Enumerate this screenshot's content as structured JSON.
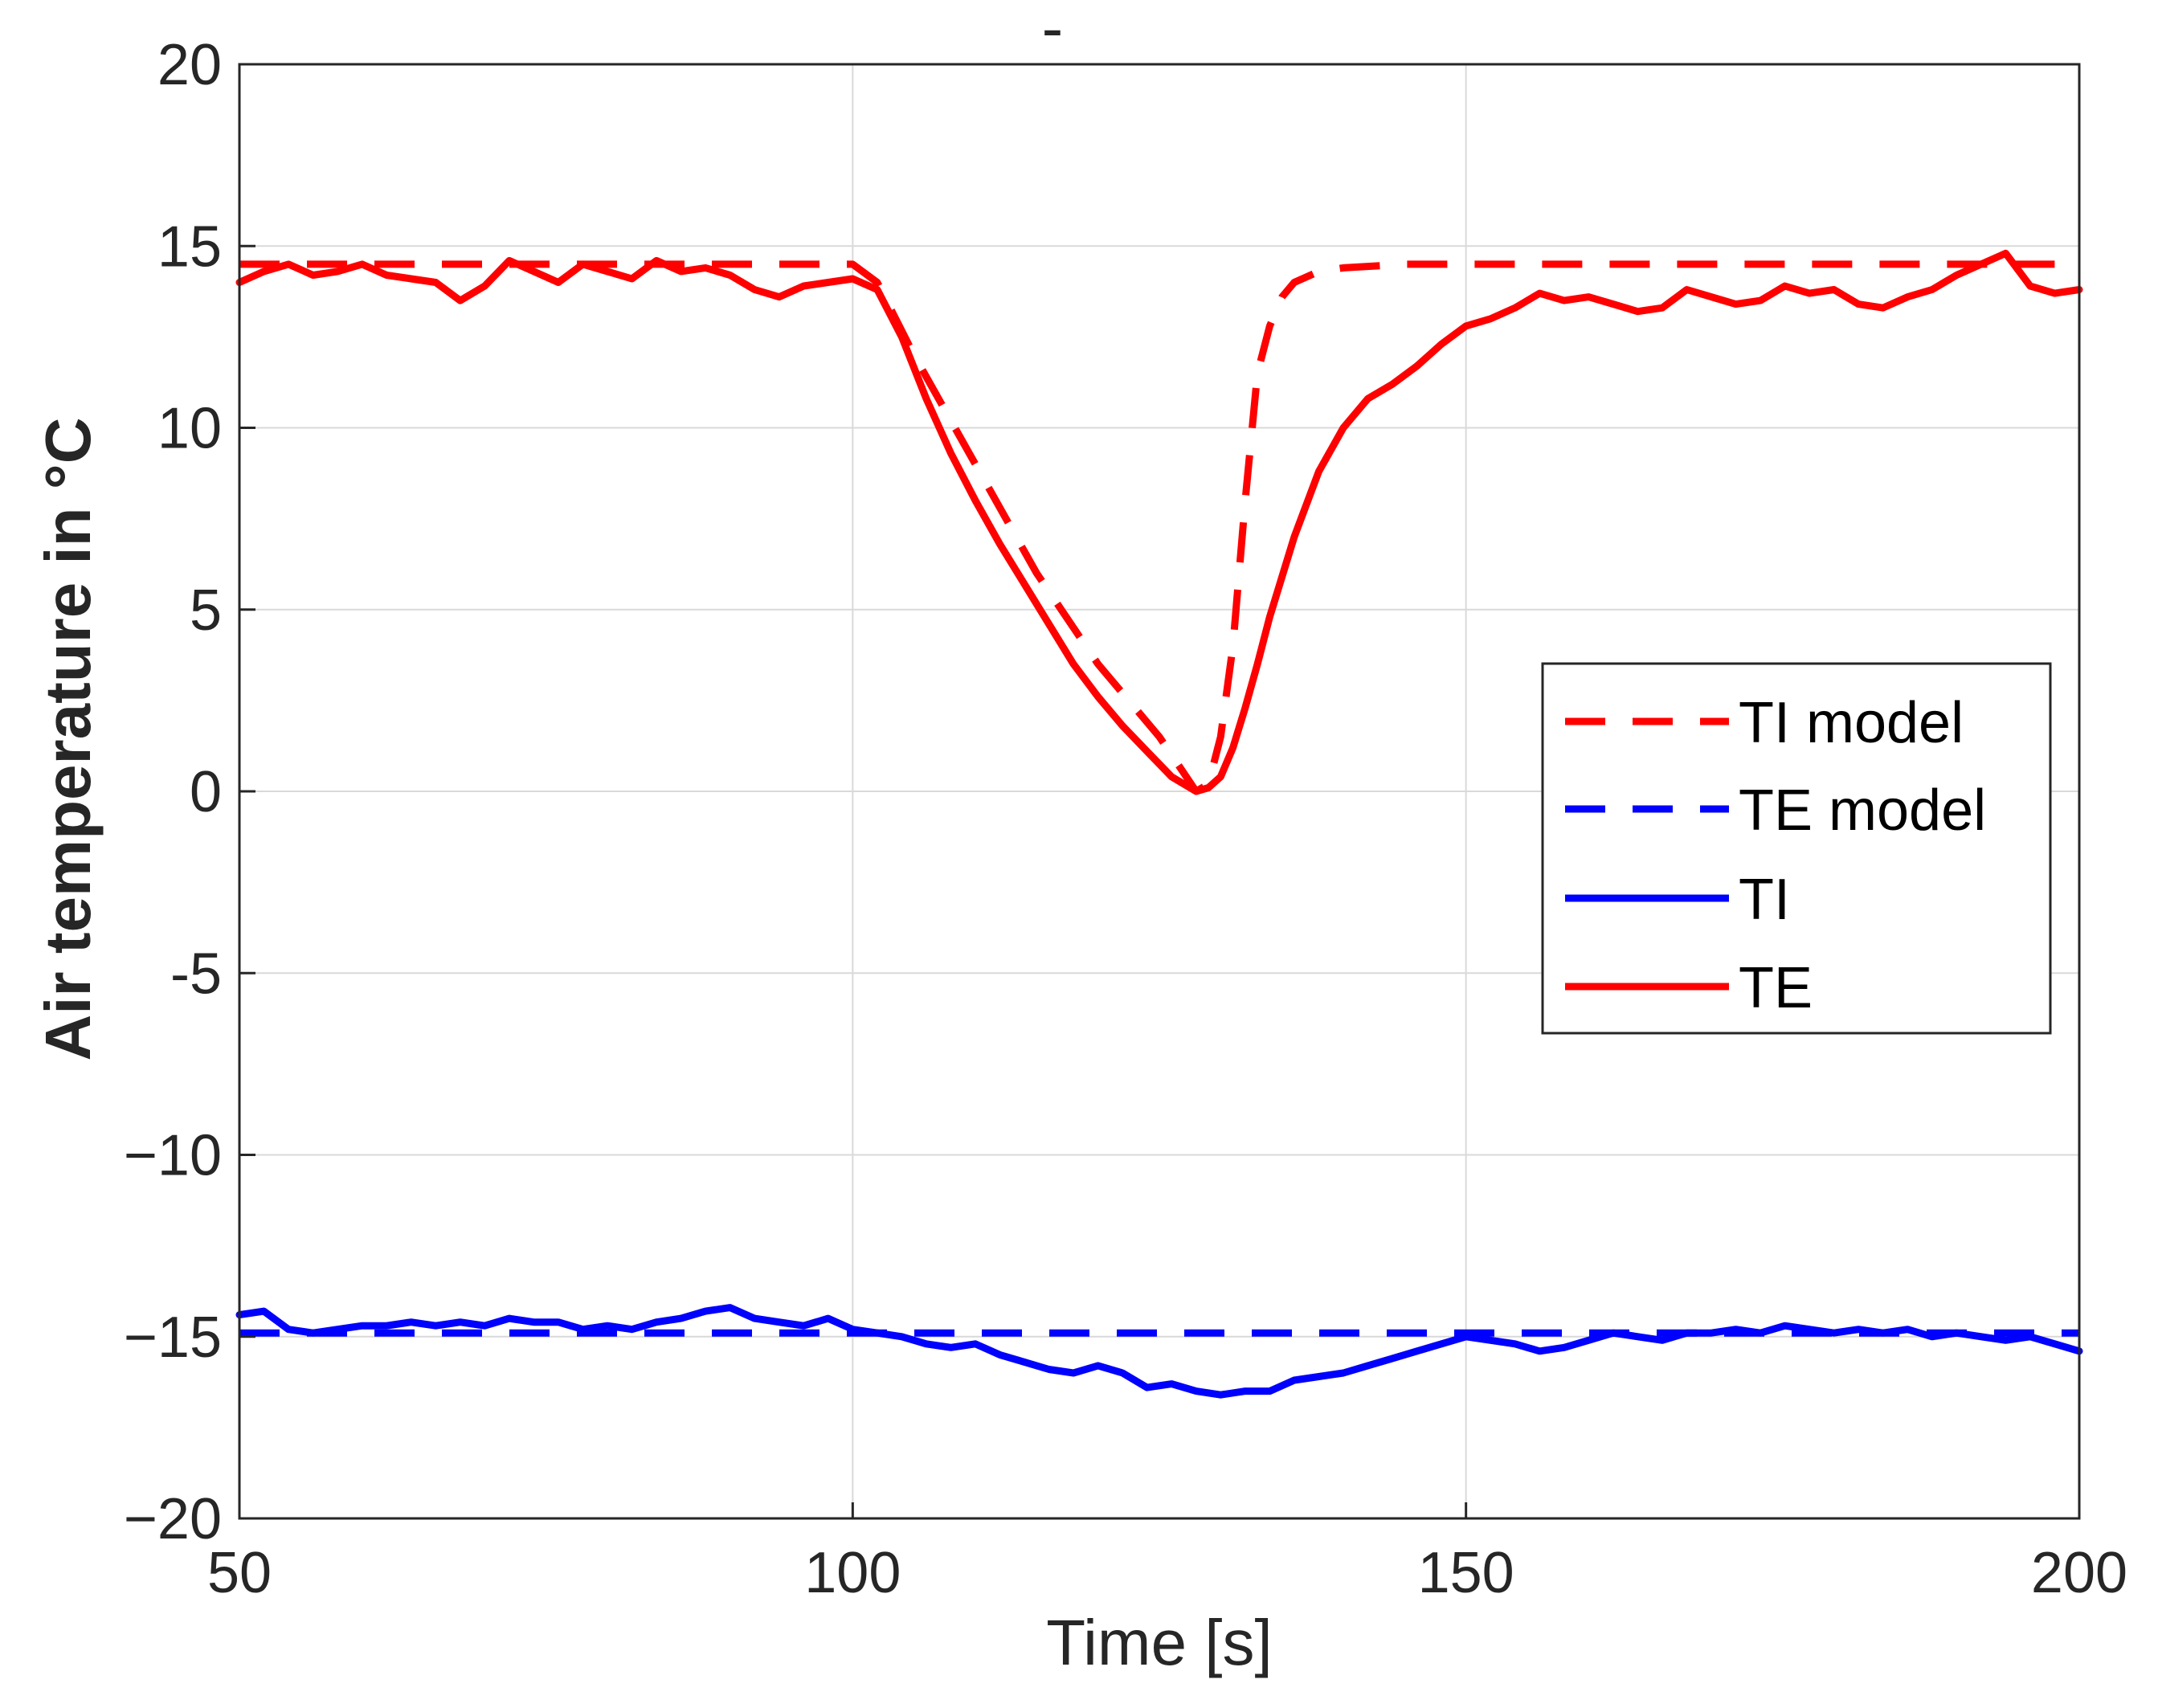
{
  "chart_data": {
    "type": "line",
    "title": "-",
    "xlabel": "Time [s]",
    "ylabel": "Air temperature in °C",
    "xlim": [
      50,
      200
    ],
    "ylim": [
      -20,
      20
    ],
    "xticks": [
      50,
      100,
      150,
      200
    ],
    "xtick_labels": [
      "50",
      "100",
      "150",
      "200"
    ],
    "yticks": [
      -20,
      -15,
      -10,
      -5,
      0,
      5,
      10,
      15,
      20
    ],
    "ytick_labels": [
      "−20",
      "−15",
      "−10",
      "-5",
      "0",
      "5",
      "10",
      "15",
      "20"
    ],
    "grid": true,
    "legend_position": "right",
    "series": [
      {
        "name": "TI model",
        "color": "#ff0000",
        "style": "dashed",
        "x": [
          50,
          100,
          102,
          105,
          110,
          115,
          120,
          125,
          128,
          129,
          130,
          131,
          132,
          133,
          134,
          135,
          136,
          138,
          140,
          145,
          150,
          160,
          170,
          180,
          190,
          200
        ],
        "y": [
          14.5,
          14.5,
          14.0,
          12.0,
          9.0,
          6.0,
          3.5,
          1.5,
          0.0,
          0.2,
          1.5,
          4.0,
          8.0,
          11.5,
          12.8,
          13.6,
          14.0,
          14.3,
          14.4,
          14.5,
          14.5,
          14.5,
          14.5,
          14.5,
          14.5,
          14.5
        ]
      },
      {
        "name": "TE model",
        "color": "#0000ff",
        "style": "dashed",
        "x": [
          50,
          200
        ],
        "y": [
          -14.9,
          -14.9
        ]
      },
      {
        "name": "TI",
        "color": "#0000ff",
        "style": "solid",
        "x": [
          50,
          52,
          54,
          56,
          58,
          60,
          62,
          64,
          66,
          68,
          70,
          72,
          74,
          76,
          78,
          80,
          82,
          84,
          86,
          88,
          90,
          92,
          94,
          96,
          98,
          100,
          102,
          104,
          106,
          108,
          110,
          112,
          114,
          116,
          118,
          120,
          122,
          124,
          126,
          128,
          130,
          132,
          134,
          136,
          138,
          140,
          142,
          144,
          146,
          148,
          150,
          152,
          154,
          156,
          158,
          160,
          162,
          164,
          166,
          168,
          170,
          172,
          174,
          176,
          178,
          180,
          182,
          184,
          186,
          188,
          190,
          192,
          194,
          196,
          198,
          200
        ],
        "y": [
          -14.4,
          -14.3,
          -14.8,
          -14.9,
          -14.8,
          -14.7,
          -14.7,
          -14.6,
          -14.7,
          -14.6,
          -14.7,
          -14.5,
          -14.6,
          -14.6,
          -14.8,
          -14.7,
          -14.8,
          -14.6,
          -14.5,
          -14.3,
          -14.2,
          -14.5,
          -14.6,
          -14.7,
          -14.5,
          -14.8,
          -14.9,
          -15.0,
          -15.2,
          -15.3,
          -15.2,
          -15.5,
          -15.7,
          -15.9,
          -16.0,
          -15.8,
          -16.0,
          -16.4,
          -16.3,
          -16.5,
          -16.6,
          -16.5,
          -16.5,
          -16.2,
          -16.1,
          -16.0,
          -15.8,
          -15.6,
          -15.4,
          -15.2,
          -15.0,
          -15.1,
          -15.2,
          -15.4,
          -15.3,
          -15.1,
          -14.9,
          -15.0,
          -15.1,
          -14.9,
          -14.9,
          -14.8,
          -14.9,
          -14.7,
          -14.8,
          -14.9,
          -14.8,
          -14.9,
          -14.8,
          -15.0,
          -14.9,
          -15.0,
          -15.1,
          -15.0,
          -15.2,
          -15.4
        ]
      },
      {
        "name": "TE",
        "color": "#ff0000",
        "style": "solid",
        "x": [
          50,
          52,
          54,
          56,
          58,
          60,
          62,
          64,
          66,
          68,
          70,
          72,
          74,
          76,
          78,
          80,
          82,
          84,
          86,
          88,
          90,
          92,
          94,
          96,
          98,
          100,
          102,
          104,
          106,
          108,
          110,
          112,
          114,
          116,
          118,
          120,
          122,
          124,
          126,
          128,
          129,
          130,
          131,
          132,
          133,
          134,
          136,
          138,
          140,
          142,
          144,
          146,
          148,
          150,
          152,
          154,
          156,
          158,
          160,
          162,
          164,
          166,
          168,
          170,
          172,
          174,
          176,
          178,
          180,
          182,
          184,
          186,
          188,
          190,
          192,
          194,
          196,
          198,
          200
        ],
        "y": [
          14.0,
          14.3,
          14.5,
          14.2,
          14.3,
          14.5,
          14.2,
          14.1,
          14.0,
          13.5,
          13.9,
          14.6,
          14.3,
          14.0,
          14.5,
          14.3,
          14.1,
          14.6,
          14.3,
          14.4,
          14.2,
          13.8,
          13.6,
          13.9,
          14.0,
          14.1,
          13.8,
          12.5,
          10.8,
          9.3,
          8.0,
          6.8,
          5.7,
          4.6,
          3.5,
          2.6,
          1.8,
          1.1,
          0.4,
          0.0,
          0.1,
          0.4,
          1.2,
          2.3,
          3.5,
          4.8,
          7.0,
          8.8,
          10.0,
          10.8,
          11.2,
          11.7,
          12.3,
          12.8,
          13.0,
          13.3,
          13.7,
          13.5,
          13.6,
          13.4,
          13.2,
          13.3,
          13.8,
          13.6,
          13.4,
          13.5,
          13.9,
          13.7,
          13.8,
          13.4,
          13.3,
          13.6,
          13.8,
          14.2,
          14.5,
          14.8,
          13.9,
          13.7,
          13.8
        ]
      }
    ]
  }
}
